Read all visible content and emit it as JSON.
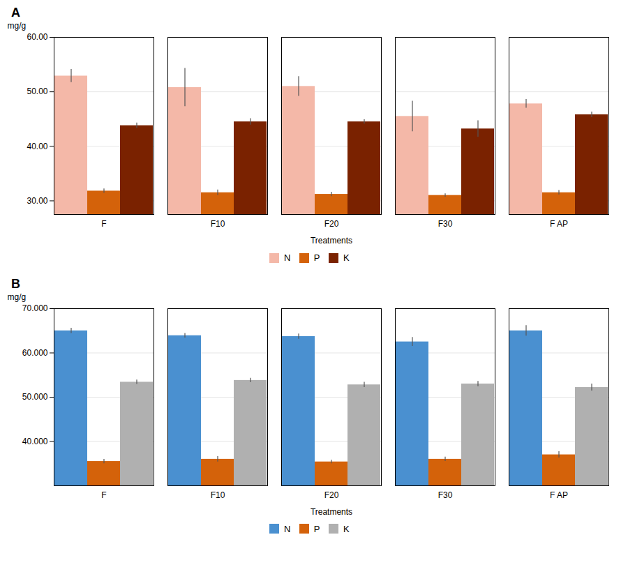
{
  "chart_data": [
    {
      "type": "bar",
      "title": "A",
      "xlabel": "Treatments",
      "ylabel": "mg/g",
      "categories": [
        "F",
        "F10",
        "F20",
        "F30",
        "F AP"
      ],
      "series": [
        {
          "name": "N",
          "color": "#f4b8a8",
          "values": [
            52.9,
            50.8,
            51.0,
            45.5,
            47.8
          ],
          "errors": [
            1.2,
            3.5,
            1.8,
            2.8,
            0.8
          ]
        },
        {
          "name": "P",
          "color": "#d4620a",
          "values": [
            31.8,
            31.5,
            31.2,
            31.0,
            31.5
          ],
          "errors": [
            0.4,
            0.5,
            0.4,
            0.3,
            0.4
          ]
        },
        {
          "name": "K",
          "color": "#7a2200",
          "values": [
            43.8,
            44.5,
            44.5,
            43.2,
            45.8
          ],
          "errors": [
            0.5,
            0.6,
            0.4,
            1.5,
            0.5
          ]
        }
      ],
      "ylim": [
        27.5,
        60.0
      ],
      "yticks": [
        {
          "value": 30.0,
          "label": "30.00"
        },
        {
          "value": 40.0,
          "label": "40.00"
        },
        {
          "value": 50.0,
          "label": "50.00"
        },
        {
          "value": 60.0,
          "label": "60.00"
        }
      ],
      "grid": true,
      "legend": "bottom"
    },
    {
      "type": "bar",
      "title": "B",
      "xlabel": "Treatments",
      "ylabel": "mg/g",
      "categories": [
        "F",
        "F10",
        "F20",
        "F30",
        "F AP"
      ],
      "series": [
        {
          "name": "N",
          "color": "#4a90d0",
          "values": [
            65.0,
            63.9,
            63.7,
            62.5,
            65.0
          ],
          "errors": [
            0.6,
            0.5,
            0.6,
            1.0,
            1.2
          ]
        },
        {
          "name": "P",
          "color": "#d4620a",
          "values": [
            35.5,
            36.0,
            35.4,
            36.0,
            37.0
          ],
          "errors": [
            0.5,
            0.6,
            0.4,
            0.5,
            0.7
          ]
        },
        {
          "name": "K",
          "color": "#b0b0b0",
          "values": [
            53.4,
            53.8,
            52.8,
            53.0,
            52.2
          ],
          "errors": [
            0.5,
            0.5,
            0.6,
            0.6,
            0.8
          ]
        }
      ],
      "ylim": [
        30.0,
        70.0
      ],
      "yticks": [
        {
          "value": 40.0,
          "label": "40.000"
        },
        {
          "value": 50.0,
          "label": "50.000"
        },
        {
          "value": 60.0,
          "label": "60.000"
        },
        {
          "value": 70.0,
          "label": "70.000"
        }
      ],
      "grid": true,
      "legend": "bottom"
    }
  ]
}
